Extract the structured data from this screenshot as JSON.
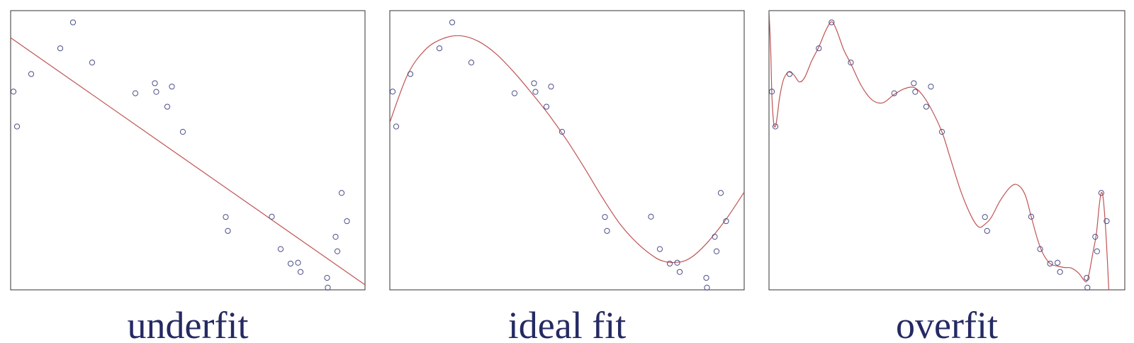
{
  "colors": {
    "frame": "#333333",
    "points": "#4a4e86",
    "curve": "#c05454",
    "caption": "#252a63"
  },
  "chart_data": [
    {
      "type": "scatter",
      "title": "underfit",
      "xlim": [
        0,
        1
      ],
      "ylim": [
        0,
        1
      ],
      "points": [
        {
          "x": 0.008,
          "y": 0.71
        },
        {
          "x": 0.018,
          "y": 0.585
        },
        {
          "x": 0.058,
          "y": 0.773
        },
        {
          "x": 0.14,
          "y": 0.865
        },
        {
          "x": 0.176,
          "y": 0.958
        },
        {
          "x": 0.23,
          "y": 0.814
        },
        {
          "x": 0.352,
          "y": 0.704
        },
        {
          "x": 0.407,
          "y": 0.74
        },
        {
          "x": 0.411,
          "y": 0.709
        },
        {
          "x": 0.442,
          "y": 0.656
        },
        {
          "x": 0.455,
          "y": 0.728
        },
        {
          "x": 0.486,
          "y": 0.566
        },
        {
          "x": 0.607,
          "y": 0.261
        },
        {
          "x": 0.613,
          "y": 0.211
        },
        {
          "x": 0.737,
          "y": 0.262
        },
        {
          "x": 0.762,
          "y": 0.146
        },
        {
          "x": 0.79,
          "y": 0.094
        },
        {
          "x": 0.811,
          "y": 0.097
        },
        {
          "x": 0.818,
          "y": 0.064
        },
        {
          "x": 0.893,
          "y": 0.043
        },
        {
          "x": 0.895,
          "y": 0.008
        },
        {
          "x": 0.917,
          "y": 0.19
        },
        {
          "x": 0.922,
          "y": 0.138
        },
        {
          "x": 0.934,
          "y": 0.347
        },
        {
          "x": 0.949,
          "y": 0.246
        }
      ],
      "fit": {
        "label": "linear",
        "coeffs": [
          0.903,
          -0.885
        ]
      }
    },
    {
      "type": "scatter",
      "title": "ideal fit",
      "xlim": [
        0,
        1
      ],
      "ylim": [
        0,
        1
      ],
      "points": [
        {
          "x": 0.008,
          "y": 0.71
        },
        {
          "x": 0.018,
          "y": 0.585
        },
        {
          "x": 0.058,
          "y": 0.773
        },
        {
          "x": 0.14,
          "y": 0.865
        },
        {
          "x": 0.176,
          "y": 0.958
        },
        {
          "x": 0.23,
          "y": 0.814
        },
        {
          "x": 0.352,
          "y": 0.704
        },
        {
          "x": 0.407,
          "y": 0.74
        },
        {
          "x": 0.411,
          "y": 0.709
        },
        {
          "x": 0.442,
          "y": 0.656
        },
        {
          "x": 0.455,
          "y": 0.728
        },
        {
          "x": 0.486,
          "y": 0.566
        },
        {
          "x": 0.607,
          "y": 0.261
        },
        {
          "x": 0.613,
          "y": 0.211
        },
        {
          "x": 0.737,
          "y": 0.262
        },
        {
          "x": 0.762,
          "y": 0.146
        },
        {
          "x": 0.79,
          "y": 0.094
        },
        {
          "x": 0.811,
          "y": 0.097
        },
        {
          "x": 0.818,
          "y": 0.064
        },
        {
          "x": 0.893,
          "y": 0.043
        },
        {
          "x": 0.895,
          "y": 0.008
        },
        {
          "x": 0.917,
          "y": 0.19
        },
        {
          "x": 0.922,
          "y": 0.138
        },
        {
          "x": 0.934,
          "y": 0.347
        },
        {
          "x": 0.949,
          "y": 0.246
        }
      ],
      "fit": {
        "label": "smooth",
        "curve": [
          [
            0.0,
            0.6
          ],
          [
            0.05,
            0.77
          ],
          [
            0.1,
            0.86
          ],
          [
            0.15,
            0.9
          ],
          [
            0.2,
            0.91
          ],
          [
            0.25,
            0.89
          ],
          [
            0.3,
            0.845
          ],
          [
            0.35,
            0.78
          ],
          [
            0.4,
            0.705
          ],
          [
            0.45,
            0.625
          ],
          [
            0.5,
            0.535
          ],
          [
            0.55,
            0.435
          ],
          [
            0.6,
            0.33
          ],
          [
            0.65,
            0.235
          ],
          [
            0.7,
            0.165
          ],
          [
            0.75,
            0.115
          ],
          [
            0.78,
            0.1
          ],
          [
            0.8,
            0.098
          ],
          [
            0.83,
            0.103
          ],
          [
            0.86,
            0.125
          ],
          [
            0.9,
            0.175
          ],
          [
            0.95,
            0.255
          ],
          [
            1.0,
            0.35
          ]
        ]
      }
    },
    {
      "type": "scatter",
      "title": "overfit",
      "xlim": [
        0,
        1
      ],
      "ylim": [
        0,
        1
      ],
      "points": [
        {
          "x": 0.008,
          "y": 0.71
        },
        {
          "x": 0.018,
          "y": 0.585
        },
        {
          "x": 0.058,
          "y": 0.773
        },
        {
          "x": 0.14,
          "y": 0.865
        },
        {
          "x": 0.176,
          "y": 0.958
        },
        {
          "x": 0.23,
          "y": 0.814
        },
        {
          "x": 0.352,
          "y": 0.704
        },
        {
          "x": 0.407,
          "y": 0.74
        },
        {
          "x": 0.411,
          "y": 0.709
        },
        {
          "x": 0.442,
          "y": 0.656
        },
        {
          "x": 0.455,
          "y": 0.728
        },
        {
          "x": 0.486,
          "y": 0.566
        },
        {
          "x": 0.607,
          "y": 0.261
        },
        {
          "x": 0.613,
          "y": 0.211
        },
        {
          "x": 0.737,
          "y": 0.262
        },
        {
          "x": 0.762,
          "y": 0.146
        },
        {
          "x": 0.79,
          "y": 0.094
        },
        {
          "x": 0.811,
          "y": 0.097
        },
        {
          "x": 0.818,
          "y": 0.064
        },
        {
          "x": 0.893,
          "y": 0.043
        },
        {
          "x": 0.895,
          "y": 0.008
        },
        {
          "x": 0.917,
          "y": 0.19
        },
        {
          "x": 0.922,
          "y": 0.138
        },
        {
          "x": 0.934,
          "y": 0.347
        },
        {
          "x": 0.949,
          "y": 0.246
        }
      ],
      "fit": {
        "label": "wiggly",
        "curve": [
          [
            0.0,
            1.0
          ],
          [
            0.005,
            0.85
          ],
          [
            0.008,
            0.7
          ],
          [
            0.013,
            0.6
          ],
          [
            0.018,
            0.585
          ],
          [
            0.023,
            0.62
          ],
          [
            0.03,
            0.69
          ],
          [
            0.04,
            0.75
          ],
          [
            0.05,
            0.775
          ],
          [
            0.058,
            0.78
          ],
          [
            0.07,
            0.77
          ],
          [
            0.085,
            0.745
          ],
          [
            0.1,
            0.76
          ],
          [
            0.12,
            0.82
          ],
          [
            0.14,
            0.87
          ],
          [
            0.16,
            0.93
          ],
          [
            0.176,
            0.96
          ],
          [
            0.19,
            0.93
          ],
          [
            0.21,
            0.86
          ],
          [
            0.23,
            0.81
          ],
          [
            0.26,
            0.73
          ],
          [
            0.29,
            0.68
          ],
          [
            0.32,
            0.67
          ],
          [
            0.352,
            0.7
          ],
          [
            0.38,
            0.72
          ],
          [
            0.407,
            0.725
          ],
          [
            0.43,
            0.7
          ],
          [
            0.455,
            0.65
          ],
          [
            0.486,
            0.566
          ],
          [
            0.51,
            0.47
          ],
          [
            0.54,
            0.35
          ],
          [
            0.57,
            0.26
          ],
          [
            0.59,
            0.225
          ],
          [
            0.607,
            0.235
          ],
          [
            0.625,
            0.26
          ],
          [
            0.65,
            0.32
          ],
          [
            0.68,
            0.37
          ],
          [
            0.7,
            0.375
          ],
          [
            0.72,
            0.34
          ],
          [
            0.737,
            0.262
          ],
          [
            0.755,
            0.18
          ],
          [
            0.77,
            0.13
          ],
          [
            0.79,
            0.094
          ],
          [
            0.811,
            0.085
          ],
          [
            0.83,
            0.08
          ],
          [
            0.85,
            0.078
          ],
          [
            0.87,
            0.06
          ],
          [
            0.885,
            0.035
          ],
          [
            0.893,
            0.03
          ],
          [
            0.9,
            0.06
          ],
          [
            0.91,
            0.13
          ],
          [
            0.92,
            0.2
          ],
          [
            0.928,
            0.3
          ],
          [
            0.934,
            0.348
          ],
          [
            0.94,
            0.32
          ],
          [
            0.948,
            0.18
          ],
          [
            0.955,
            0.0
          ]
        ]
      }
    }
  ]
}
